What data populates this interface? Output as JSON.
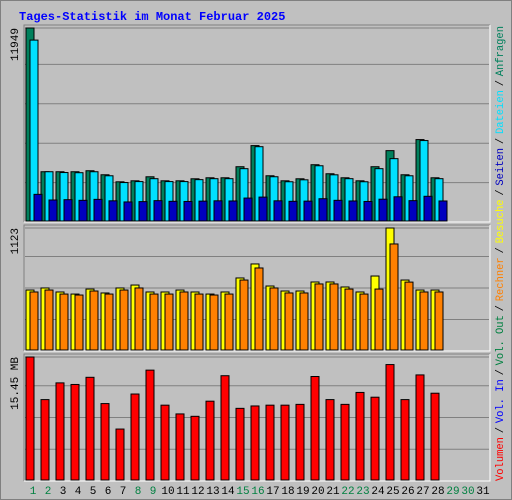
{
  "title": "Tages-Statistik im Monat Februar 2025",
  "categories": [
    "1",
    "2",
    "3",
    "4",
    "5",
    "6",
    "7",
    "8",
    "9",
    "10",
    "11",
    "12",
    "13",
    "14",
    "15",
    "16",
    "17",
    "18",
    "19",
    "20",
    "21",
    "22",
    "23",
    "24",
    "25",
    "26",
    "27",
    "28",
    "29",
    "30",
    "31"
  ],
  "category_colors": [
    "#008040",
    "#008040",
    "#000000",
    "#000000",
    "#000000",
    "#000000",
    "#000000",
    "#008040",
    "#008040",
    "#000000",
    "#000000",
    "#000000",
    "#000000",
    "#000000",
    "#008040",
    "#008040",
    "#000000",
    "#000000",
    "#000000",
    "#000000",
    "#000000",
    "#008040",
    "#008040",
    "#000000",
    "#000000",
    "#000000",
    "#000000",
    "#000000",
    "#008040",
    "#008040",
    "#000000"
  ],
  "legend_separator": "/",
  "chart_data": [
    {
      "type": "bar",
      "ylim": [
        0,
        11949
      ],
      "yticks": [
        11949
      ],
      "series": [
        {
          "name": "Anfragen",
          "color": "#00805c",
          "values": [
            11949,
            3050,
            3050,
            3050,
            3112,
            2863,
            2427,
            2489,
            2738,
            2489,
            2489,
            2614,
            2676,
            2676,
            3361,
            4668,
            2801,
            2489,
            2614,
            3485,
            2925,
            2676,
            2489,
            3361,
            4356,
            2863,
            5041,
            2676,
            null,
            null,
            null
          ]
        },
        {
          "name": "Dateien",
          "color": "#00e0ff",
          "values": [
            11200,
            3050,
            3000,
            2990,
            3050,
            2800,
            2380,
            2440,
            2620,
            2440,
            2440,
            2560,
            2620,
            2620,
            3240,
            4600,
            2740,
            2430,
            2550,
            3420,
            2860,
            2620,
            2430,
            3240,
            3860,
            2800,
            4980,
            2620,
            null,
            null,
            null
          ]
        },
        {
          "name": "Seiten",
          "color": "#0000c0",
          "values": [
            1650,
            1300,
            1320,
            1280,
            1340,
            1250,
            1180,
            1200,
            1260,
            1220,
            1210,
            1230,
            1250,
            1240,
            1420,
            1480,
            1250,
            1220,
            1230,
            1380,
            1280,
            1240,
            1210,
            1350,
            1500,
            1260,
            1530,
            1240,
            null,
            null,
            null
          ]
        }
      ]
    },
    {
      "type": "bar",
      "ylim": [
        0,
        1123
      ],
      "yticks": [
        1123
      ],
      "series": [
        {
          "name": "Besuche",
          "color": "#ffff00",
          "values": [
            552,
            571,
            534,
            515,
            561,
            525,
            571,
            598,
            534,
            534,
            552,
            534,
            515,
            534,
            663,
            792,
            589,
            543,
            543,
            626,
            626,
            580,
            534,
            681,
            1123,
            644,
            552,
            552,
            null,
            null,
            null
          ]
        },
        {
          "name": "Rechner",
          "color": "#ff8000",
          "values": [
            534,
            552,
            515,
            506,
            543,
            515,
            552,
            571,
            515,
            515,
            534,
            515,
            506,
            515,
            644,
            755,
            571,
            525,
            525,
            608,
            608,
            561,
            515,
            561,
            976,
            625,
            534,
            534,
            null,
            null,
            null
          ]
        }
      ]
    },
    {
      "type": "bar",
      "ylim": [
        0,
        15.45
      ],
      "yticks": [
        {
          "value": 15.45,
          "label": "15.45 MB"
        }
      ],
      "series": [
        {
          "name": "Volumen",
          "color": "#ff0000",
          "values": [
            15.45,
            10.1,
            12.2,
            12.0,
            12.9,
            9.6,
            6.4,
            10.8,
            13.8,
            9.4,
            8.3,
            8.0,
            9.9,
            13.1,
            9.0,
            9.3,
            9.4,
            9.4,
            9.5,
            13.0,
            10.1,
            9.5,
            11.0,
            10.4,
            14.5,
            10.1,
            13.2,
            10.9,
            null,
            null,
            null
          ]
        }
      ],
      "legend": [
        {
          "name": "Vol. In",
          "color": "#0000ff"
        },
        {
          "name": "Vol. Out",
          "color": "#008040"
        }
      ]
    }
  ]
}
